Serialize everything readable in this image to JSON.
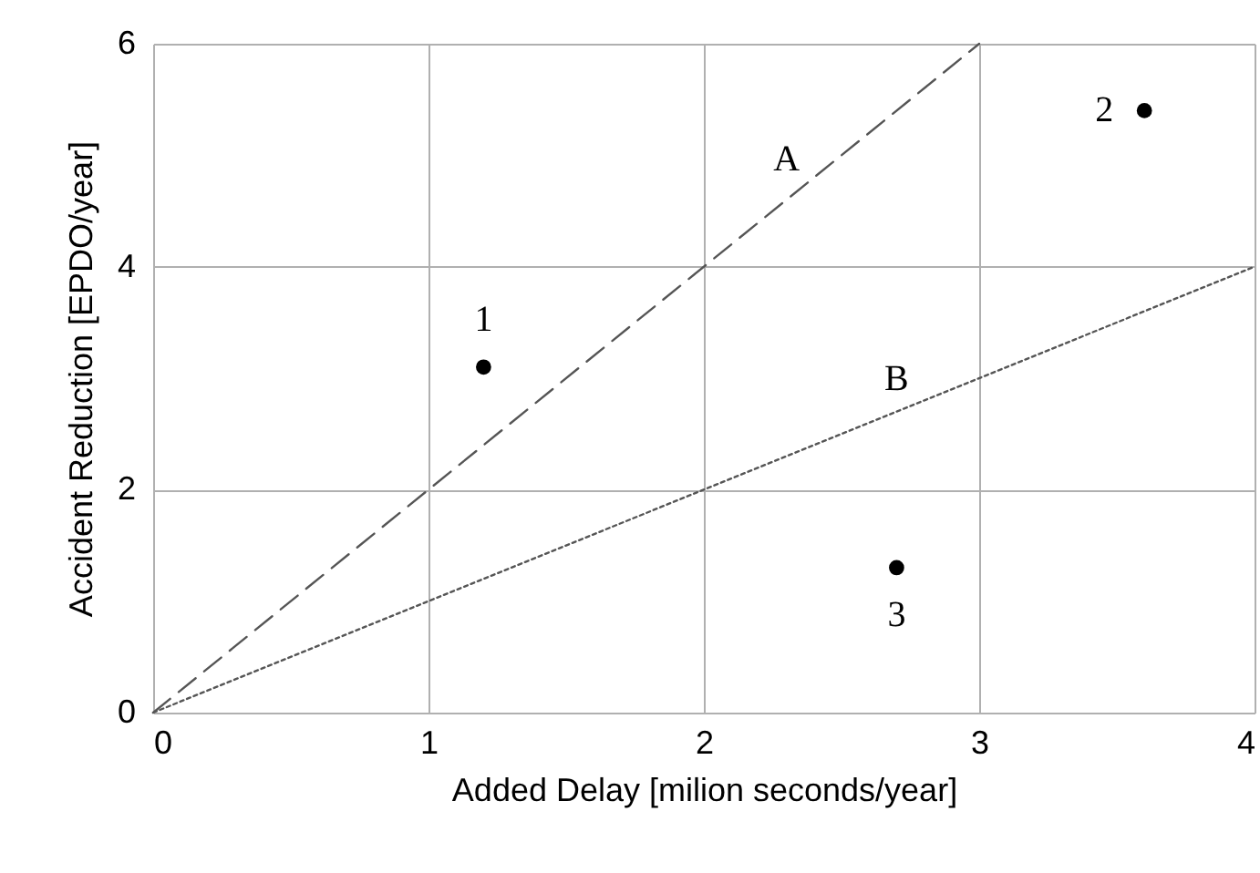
{
  "chart_data": {
    "type": "scatter",
    "xlabel": "Added Delay [milion seconds/year]",
    "ylabel": "Accident Reduction [EPDO/year]",
    "xlim": [
      0,
      4
    ],
    "ylim": [
      0,
      6
    ],
    "xticks": [
      0,
      1,
      2,
      3,
      4
    ],
    "yticks": [
      0,
      2,
      4,
      6
    ],
    "grid": true,
    "series": [
      {
        "x": [
          1.2,
          3.6,
          2.7
        ],
        "values": [
          3.1,
          5.4,
          1.3
        ],
        "color": "#000000",
        "marker": "circle"
      },
      {
        "type": "line",
        "x": [
          0,
          3
        ],
        "values": [
          0,
          6
        ],
        "color": "#555555",
        "line_style": "dashed"
      },
      {
        "type": "line",
        "x": [
          0,
          4
        ],
        "values": [
          0,
          4
        ],
        "color": "#555555",
        "line_style": "dotted"
      }
    ],
    "annotations": [
      {
        "text": "1",
        "x": 1.2,
        "y": 3.1
      },
      {
        "text": "2",
        "x": 3.6,
        "y": 5.4
      },
      {
        "text": "3",
        "x": 2.7,
        "y": 1.3
      },
      {
        "text": "A",
        "x": 2.3,
        "y": 4.6
      },
      {
        "text": "B",
        "x": 2.7,
        "y": 2.7
      }
    ]
  }
}
